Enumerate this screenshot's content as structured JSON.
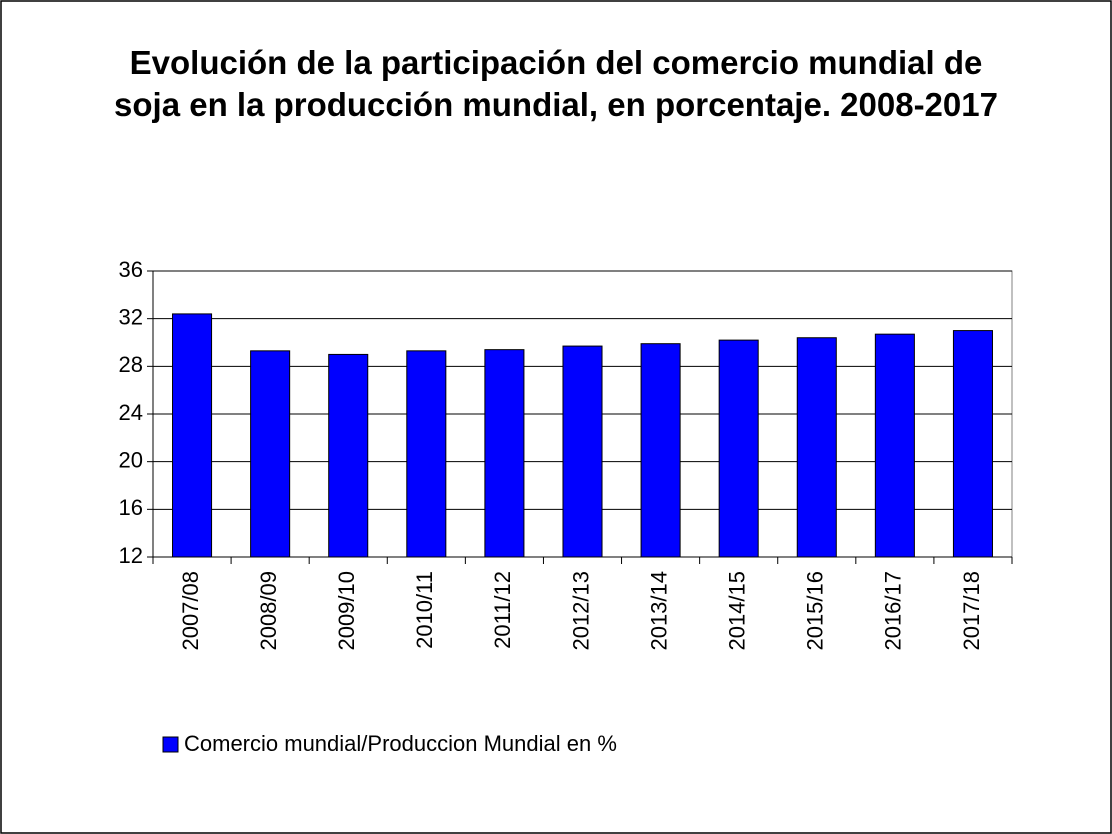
{
  "chart_data": {
    "type": "bar",
    "title": "Evolución de la participación del comercio mundial de soja en la producción mundial, en porcentaje. 2008-2017",
    "categories": [
      "2007/08",
      "2008/09",
      "2009/10",
      "2010/11",
      "2011/12",
      "2012/13",
      "2013/14",
      "2014/15",
      "2015/16",
      "2016/17",
      "2017/18"
    ],
    "series": [
      {
        "name": "Comercio mundial/Produccion Mundial en %",
        "color": "#0000ff",
        "values": [
          32.4,
          29.3,
          29.0,
          29.3,
          29.4,
          29.7,
          29.9,
          30.2,
          30.4,
          30.7,
          31.0
        ]
      }
    ],
    "ylim": [
      12,
      36
    ],
    "yticks": [
      12,
      16,
      20,
      24,
      28,
      32,
      36
    ],
    "grid": true,
    "legend": "bottom-left"
  }
}
